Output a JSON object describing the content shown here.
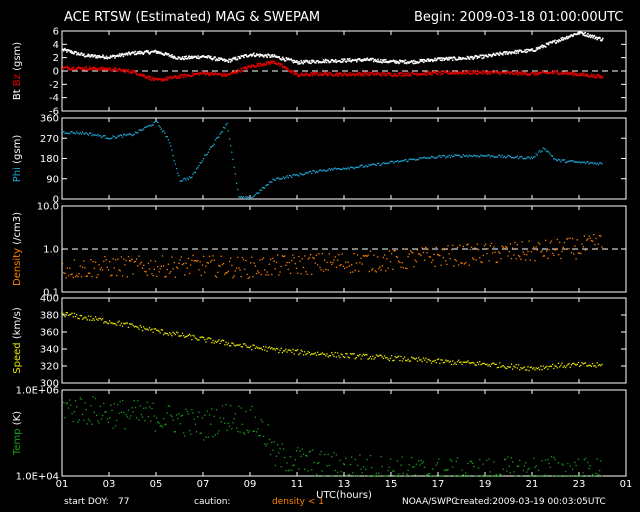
{
  "header": {
    "title": "ACE RTSW (Estimated) MAG & SWEPAM",
    "begin": "Begin: 2009-03-18 01:00:00UTC"
  },
  "footer": {
    "start_doy_label": "start DOY:",
    "start_doy": "77",
    "caution_label": "caution:",
    "density_caution": "density < 1",
    "source": "NOAA/SWPC",
    "created": "created:2009-03-19 00:03:05UTC"
  },
  "colors": {
    "bt": "#ffffff",
    "bz": "#e00000",
    "phi": "#1fa9d9",
    "density": "#ff8000",
    "speed": "#e8e800",
    "temp": "#18a018",
    "axis": "#ffffff",
    "dash": "#ffffff"
  },
  "chart_data": {
    "type": "scatter",
    "xlabel": "UTC(hours)",
    "x_ticks": [
      "01",
      "03",
      "05",
      "07",
      "09",
      "11",
      "13",
      "15",
      "17",
      "19",
      "21",
      "23",
      "01"
    ],
    "panels": [
      {
        "id": "mag",
        "ylabel_parts": [
          {
            "text": "Bt",
            "color": "#ffffff"
          },
          {
            "text": " Bz",
            "color": "#e00000"
          },
          {
            "text": " (gsm)",
            "color": "#ffffff"
          }
        ],
        "ylim": [
          -6,
          6
        ],
        "yticks": [
          "6",
          "4",
          "2",
          "0",
          "-2",
          "-4",
          "-6"
        ],
        "dashed_at": 0,
        "series": [
          {
            "name": "Bt",
            "color": "#ffffff",
            "points": [
              [
                1,
                3.3
              ],
              [
                2,
                2.4
              ],
              [
                3,
                2.2
              ],
              [
                4,
                2.8
              ],
              [
                5,
                3.0
              ],
              [
                6,
                2.0
              ],
              [
                7,
                2.3
              ],
              [
                8,
                1.6
              ],
              [
                9,
                2.6
              ],
              [
                10,
                2.3
              ],
              [
                11,
                1.4
              ],
              [
                12,
                1.6
              ],
              [
                13,
                1.7
              ],
              [
                14,
                1.8
              ],
              [
                15,
                1.5
              ],
              [
                16,
                1.5
              ],
              [
                17,
                1.9
              ],
              [
                18,
                2.0
              ],
              [
                19,
                2.3
              ],
              [
                20,
                2.9
              ],
              [
                21,
                3.2
              ],
              [
                22,
                4.6
              ],
              [
                23,
                5.9
              ],
              [
                24,
                4.8
              ]
            ]
          },
          {
            "name": "Bz",
            "color": "#e00000",
            "points": [
              [
                1,
                0.6
              ],
              [
                2,
                0.5
              ],
              [
                3,
                0.4
              ],
              [
                4,
                0.0
              ],
              [
                5,
                -1.3
              ],
              [
                6,
                -0.7
              ],
              [
                7,
                -0.2
              ],
              [
                8,
                -0.5
              ],
              [
                9,
                0.8
              ],
              [
                10,
                1.5
              ],
              [
                11,
                -0.5
              ],
              [
                12,
                -0.3
              ],
              [
                13,
                -0.4
              ],
              [
                14,
                -0.3
              ],
              [
                15,
                -0.4
              ],
              [
                16,
                -0.3
              ],
              [
                17,
                -0.2
              ],
              [
                18,
                -0.1
              ],
              [
                19,
                -0.1
              ],
              [
                20,
                -0.2
              ],
              [
                21,
                -0.3
              ],
              [
                22,
                -0.1
              ],
              [
                23,
                -0.4
              ],
              [
                24,
                -0.8
              ]
            ]
          }
        ]
      },
      {
        "id": "phi",
        "ylabel_parts": [
          {
            "text": "Phi",
            "color": "#1fa9d9"
          },
          {
            "text": " (gsm)",
            "color": "#ffffff"
          }
        ],
        "ylim": [
          0,
          360
        ],
        "yticks": [
          "360",
          "270",
          "180",
          "90",
          "0"
        ],
        "series": [
          {
            "name": "Phi",
            "color": "#1fa9d9",
            "points": [
              [
                1,
                300
              ],
              [
                2,
                295
              ],
              [
                3,
                275
              ],
              [
                4,
                290
              ],
              [
                5,
                345
              ],
              [
                5.5,
                270
              ],
              [
                6,
                85
              ],
              [
                6.5,
                100
              ],
              [
                7,
                185
              ],
              [
                7.5,
                260
              ],
              [
                8,
                340
              ],
              [
                8.5,
                10
              ],
              [
                9,
                5
              ],
              [
                10,
                90
              ],
              [
                11,
                110
              ],
              [
                12,
                130
              ],
              [
                13,
                140
              ],
              [
                14,
                150
              ],
              [
                15,
                165
              ],
              [
                16,
                180
              ],
              [
                17,
                190
              ],
              [
                18,
                195
              ],
              [
                19,
                195
              ],
              [
                20,
                190
              ],
              [
                21,
                185
              ],
              [
                21.5,
                230
              ],
              [
                22,
                175
              ],
              [
                23,
                165
              ],
              [
                24,
                160
              ]
            ]
          }
        ]
      },
      {
        "id": "density",
        "ylabel_parts": [
          {
            "text": "Density",
            "color": "#ff8000"
          },
          {
            "text": " (/cm3)",
            "color": "#ffffff"
          }
        ],
        "scale": "log",
        "ylim": [
          0.1,
          10
        ],
        "yticks": [
          "10.0",
          "1.0",
          "0.1"
        ],
        "dashed_at": 1,
        "series": [
          {
            "name": "Density",
            "color": "#ff8000",
            "points": [
              [
                1,
                0.35
              ],
              [
                3,
                0.4
              ],
              [
                5,
                0.4
              ],
              [
                7,
                0.42
              ],
              [
                9,
                0.38
              ],
              [
                11,
                0.45
              ],
              [
                13,
                0.5
              ],
              [
                15,
                0.55
              ],
              [
                17,
                0.7
              ],
              [
                19,
                0.8
              ],
              [
                21,
                0.9
              ],
              [
                23,
                1.1
              ],
              [
                24,
                1.4
              ]
            ]
          }
        ]
      },
      {
        "id": "speed",
        "ylabel_parts": [
          {
            "text": "Speed",
            "color": "#e8e800"
          },
          {
            "text": " (km/s)",
            "color": "#ffffff"
          }
        ],
        "ylim": [
          300,
          400
        ],
        "yticks": [
          "400",
          "380",
          "360",
          "340",
          "320",
          "300"
        ],
        "series": [
          {
            "name": "Speed",
            "color": "#e8e800",
            "points": [
              [
                1,
                382
              ],
              [
                3,
                373
              ],
              [
                5,
                362
              ],
              [
                7,
                352
              ],
              [
                9,
                343
              ],
              [
                11,
                337
              ],
              [
                13,
                333
              ],
              [
                15,
                330
              ],
              [
                17,
                326
              ],
              [
                19,
                323
              ],
              [
                21,
                318
              ],
              [
                22,
                321
              ],
              [
                23,
                322
              ],
              [
                24,
                321
              ]
            ]
          }
        ]
      },
      {
        "id": "temp",
        "ylabel_parts": [
          {
            "text": "Temp",
            "color": "#18a018"
          },
          {
            "text": " (K)",
            "color": "#ffffff"
          }
        ],
        "scale": "log",
        "ylim": [
          10000,
          1000000
        ],
        "yticks": [
          "1.0E+06",
          "1.0E+04"
        ],
        "series": [
          {
            "name": "Temp",
            "color": "#18a018",
            "points": [
              [
                1,
                400000
              ],
              [
                3,
                300000
              ],
              [
                5,
                250000
              ],
              [
                7,
                150000
              ],
              [
                8,
                250000
              ],
              [
                9,
                200000
              ],
              [
                10,
                30000
              ],
              [
                12,
                18000
              ],
              [
                14,
                15000
              ],
              [
                16,
                13000
              ],
              [
                18,
                12000
              ],
              [
                20,
                13000
              ],
              [
                22,
                14000
              ],
              [
                24,
                12000
              ]
            ]
          }
        ]
      }
    ]
  }
}
